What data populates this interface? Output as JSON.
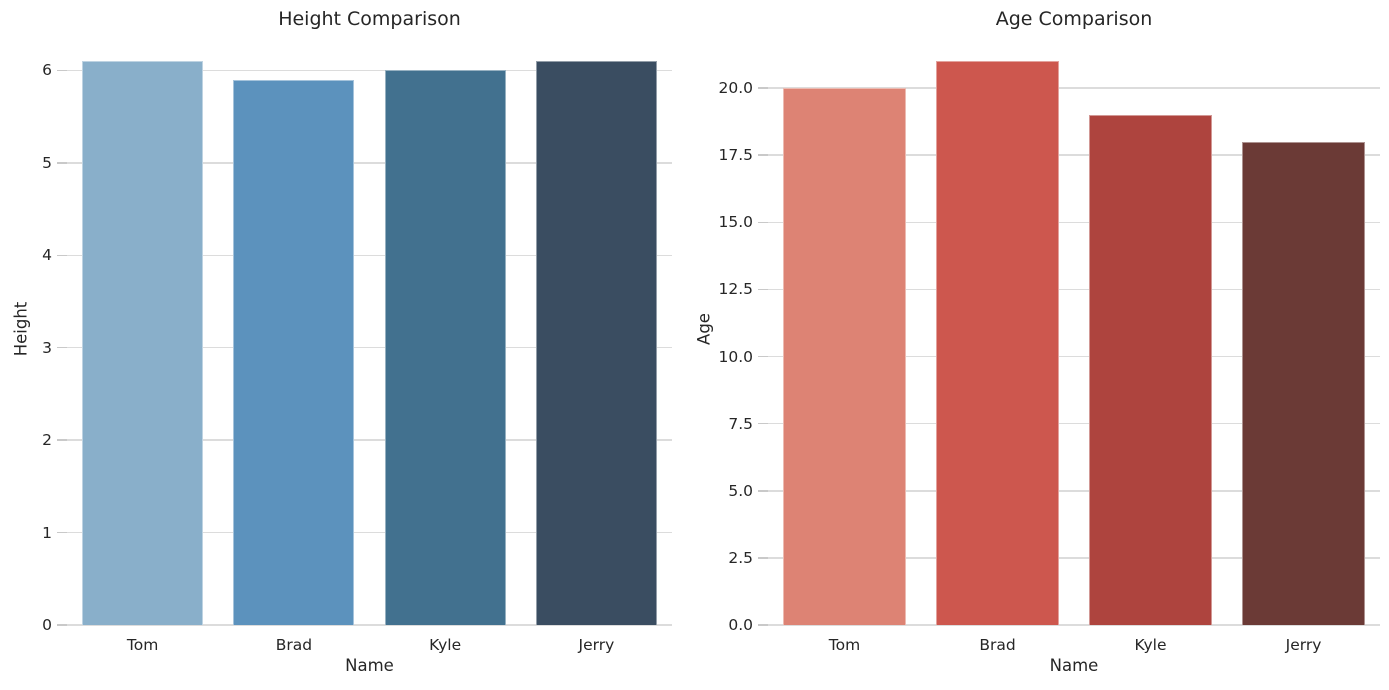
{
  "figure": {
    "background": "#ffffff",
    "grid_color": "#dcdcdc",
    "tick_color": "#c9c9c9",
    "text_color": "#262626"
  },
  "chart_data": [
    {
      "type": "bar",
      "title": "Height Comparison",
      "xlabel": "Name",
      "ylabel": "Height",
      "categories": [
        "Tom",
        "Brad",
        "Kyle",
        "Jerry"
      ],
      "values": [
        6.1,
        5.9,
        6.0,
        6.1
      ],
      "bar_colors": [
        "#89AFCA",
        "#5C92BD",
        "#42718F",
        "#3A4D61"
      ],
      "ylim": [
        0,
        6.405
      ],
      "grid": true,
      "legend": "none",
      "yticks": [
        {
          "v": 0,
          "label": "0"
        },
        {
          "v": 1,
          "label": "1"
        },
        {
          "v": 2,
          "label": "2"
        },
        {
          "v": 3,
          "label": "3"
        },
        {
          "v": 4,
          "label": "4"
        },
        {
          "v": 5,
          "label": "5"
        },
        {
          "v": 6,
          "label": "6"
        }
      ]
    },
    {
      "type": "bar",
      "title": "Age Comparison",
      "xlabel": "Name",
      "ylabel": "Age",
      "categories": [
        "Tom",
        "Brad",
        "Kyle",
        "Jerry"
      ],
      "values": [
        20,
        21,
        19,
        18
      ],
      "bar_colors": [
        "#DD8374",
        "#CD574E",
        "#AE443E",
        "#6B3A36"
      ],
      "ylim": [
        0,
        22.05
      ],
      "grid": true,
      "legend": "none",
      "yticks": [
        {
          "v": 0,
          "label": "0.0"
        },
        {
          "v": 2.5,
          "label": "2.5"
        },
        {
          "v": 5,
          "label": "5.0"
        },
        {
          "v": 7.5,
          "label": "7.5"
        },
        {
          "v": 10,
          "label": "10.0"
        },
        {
          "v": 12.5,
          "label": "12.5"
        },
        {
          "v": 15,
          "label": "15.0"
        },
        {
          "v": 17.5,
          "label": "17.5"
        },
        {
          "v": 20,
          "label": "20.0"
        }
      ]
    }
  ]
}
